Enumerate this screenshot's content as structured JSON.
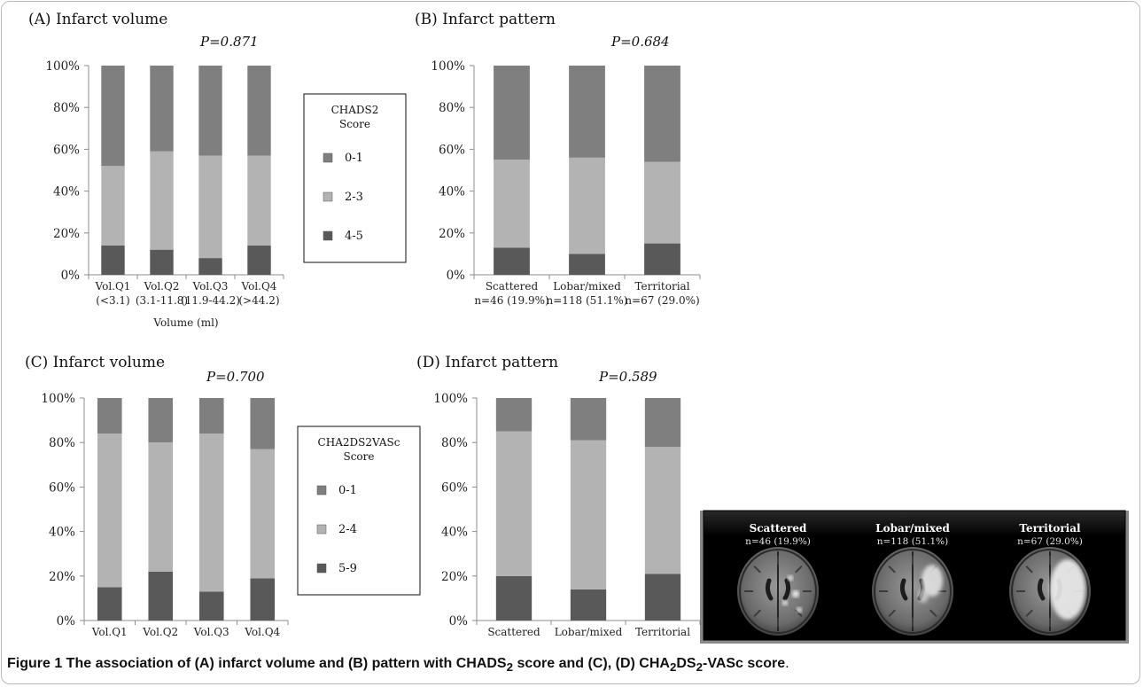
{
  "colors": {
    "high": "#595959",
    "mid": "#b3b3b3",
    "low": "#7f7f7f",
    "axis": "#8c8c8c"
  },
  "chart_data": [
    {
      "id": "A",
      "type": "bar",
      "stacked": true,
      "title": "(A) Infarct volume",
      "pvalue": "P=0.871",
      "categories": [
        "Vol.Q1",
        "Vol.Q2",
        "Vol.Q3",
        "Vol.Q4"
      ],
      "category_sublabels": [
        "(<3.1)",
        "(3.1-11.8)",
        "(11.9-44.2)",
        "(>44.2)"
      ],
      "xlabel": "Volume (ml)",
      "ylabel": "",
      "ylim": [
        0,
        100
      ],
      "yticks": [
        "0%",
        "20%",
        "40%",
        "60%",
        "80%",
        "100%"
      ],
      "series": [
        {
          "name": "4-5",
          "color_key": "high",
          "values": [
            14,
            12,
            8,
            14
          ]
        },
        {
          "name": "2-3",
          "color_key": "mid",
          "values": [
            38,
            47,
            49,
            43
          ]
        },
        {
          "name": "0-1",
          "color_key": "low",
          "values": [
            48,
            41,
            43,
            43
          ]
        }
      ]
    },
    {
      "id": "B",
      "type": "bar",
      "stacked": true,
      "title": "(B) Infarct pattern",
      "pvalue": "P=0.684",
      "categories": [
        "Scattered",
        "Lobar/mixed",
        "Territorial"
      ],
      "category_sublabels": [
        "n=46 (19.9%)",
        "n=118 (51.1%)",
        "n=67 (29.0%)"
      ],
      "xlabel": "",
      "ylabel": "",
      "ylim": [
        0,
        100
      ],
      "yticks": [
        "0%",
        "20%",
        "40%",
        "60%",
        "80%",
        "100%"
      ],
      "series": [
        {
          "name": "4-5",
          "color_key": "high",
          "values": [
            13,
            10,
            15
          ]
        },
        {
          "name": "2-3",
          "color_key": "mid",
          "values": [
            42,
            46,
            39
          ]
        },
        {
          "name": "0-1",
          "color_key": "low",
          "values": [
            45,
            44,
            46
          ]
        }
      ]
    },
    {
      "id": "C",
      "type": "bar",
      "stacked": true,
      "title": "(C) Infarct volume",
      "pvalue": "P=0.700",
      "categories": [
        "Vol.Q1",
        "Vol.Q2",
        "Vol.Q3",
        "Vol.Q4"
      ],
      "category_sublabels": [],
      "xlabel": "",
      "ylabel": "",
      "ylim": [
        0,
        100
      ],
      "yticks": [
        "0%",
        "20%",
        "40%",
        "60%",
        "80%",
        "100%"
      ],
      "series": [
        {
          "name": "5-9",
          "color_key": "high",
          "values": [
            15,
            22,
            13,
            19
          ]
        },
        {
          "name": "2-4",
          "color_key": "mid",
          "values": [
            69,
            58,
            71,
            58
          ]
        },
        {
          "name": "0-1",
          "color_key": "low",
          "values": [
            16,
            20,
            16,
            23
          ]
        }
      ]
    },
    {
      "id": "D",
      "type": "bar",
      "stacked": true,
      "title": "(D) Infarct pattern",
      "pvalue": "P=0.589",
      "categories": [
        "Scattered",
        "Lobar/mixed",
        "Territorial"
      ],
      "category_sublabels": [],
      "xlabel": "",
      "ylabel": "",
      "ylim": [
        0,
        100
      ],
      "yticks": [
        "0%",
        "20%",
        "40%",
        "60%",
        "80%",
        "100%"
      ],
      "series": [
        {
          "name": "5-9",
          "color_key": "high",
          "values": [
            20,
            14,
            21
          ]
        },
        {
          "name": "2-4",
          "color_key": "mid",
          "values": [
            65,
            67,
            57
          ]
        },
        {
          "name": "0-1",
          "color_key": "low",
          "values": [
            15,
            19,
            22
          ]
        }
      ]
    }
  ],
  "legends": [
    {
      "id": "top",
      "title_lines": [
        "CHADS2",
        "Score"
      ],
      "items": [
        {
          "label": "0-1",
          "color_key": "low"
        },
        {
          "label": "2-3",
          "color_key": "mid"
        },
        {
          "label": "4-5",
          "color_key": "high"
        }
      ]
    },
    {
      "id": "bottom",
      "title_lines": [
        "CHA2DS2VASc",
        "Score"
      ],
      "items": [
        {
          "label": "0-1",
          "color_key": "low"
        },
        {
          "label": "2-4",
          "color_key": "mid"
        },
        {
          "label": "5-9",
          "color_key": "high"
        }
      ]
    }
  ],
  "mri_panel": {
    "items": [
      {
        "label": "Scattered",
        "sub": "n=46 (19.9%)"
      },
      {
        "label": "Lobar/mixed",
        "sub": "n=118 (51.1%)"
      },
      {
        "label": "Territorial",
        "sub": "n=67 (29.0%)"
      }
    ]
  },
  "caption": {
    "label": "Figure 1",
    "parts": [
      {
        "text": " The association of (A) infarct volume and (B) pattern with CHADS",
        "bold": true
      },
      {
        "text": "2",
        "bold": true,
        "sub": true
      },
      {
        "text": " score and (C), (D) CHA",
        "bold": true
      },
      {
        "text": "2",
        "bold": true,
        "sub": true
      },
      {
        "text": "DS",
        "bold": true
      },
      {
        "text": "2",
        "bold": true,
        "sub": true
      },
      {
        "text": "-VASc score",
        "bold": true
      },
      {
        "text": ".",
        "bold": false
      }
    ]
  }
}
